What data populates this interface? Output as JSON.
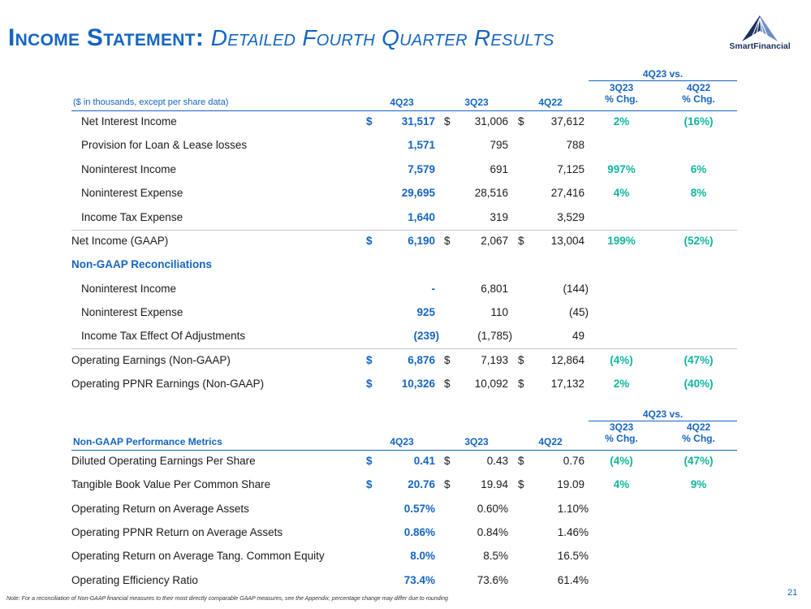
{
  "title": {
    "main": "Income Statement:",
    "sub": "Detailed Fourth Quarter Results"
  },
  "logo": {
    "text": "SmartFinancial"
  },
  "table1": {
    "group_header": "4Q23 vs.",
    "note": "($ in thousands, except per share data)",
    "cols": [
      "4Q23",
      "3Q23",
      "4Q22"
    ],
    "pct_cols": [
      "3Q23\n% Chg.",
      "4Q22\n% Chg."
    ],
    "rows": [
      {
        "label": "Net Interest Income",
        "d1": "$",
        "v1": "31,517",
        "d2": "$",
        "v2": "31,006",
        "d3": "$",
        "v3": "37,612",
        "p1": "2%",
        "p2": "(16%)"
      },
      {
        "label": "Provision for Loan & Lease losses",
        "d1": "",
        "v1": "1,571",
        "d2": "",
        "v2": "795",
        "d3": "",
        "v3": "788",
        "p1": "",
        "p2": ""
      },
      {
        "label": "Noninterest Income",
        "d1": "",
        "v1": "7,579",
        "d2": "",
        "v2": "691",
        "d3": "",
        "v3": "7,125",
        "p1": "997%",
        "p2": "6%"
      },
      {
        "label": "Noninterest Expense",
        "d1": "",
        "v1": "29,695",
        "d2": "",
        "v2": "28,516",
        "d3": "",
        "v3": "27,416",
        "p1": "4%",
        "p2": "8%"
      },
      {
        "label": "Income Tax Expense",
        "d1": "",
        "v1": "1,640",
        "d2": "",
        "v2": "319",
        "d3": "",
        "v3": "3,529",
        "p1": "",
        "p2": ""
      },
      {
        "label": "Net Income (GAAP)",
        "d1": "$",
        "v1": "6,190",
        "d2": "$",
        "v2": "2,067",
        "d3": "$",
        "v3": "13,004",
        "p1": "199%",
        "p2": "(52%)"
      },
      {
        "label": "Non-GAAP Reconciliations",
        "d1": "",
        "v1": "",
        "d2": "",
        "v2": "",
        "d3": "",
        "v3": "",
        "p1": "",
        "p2": ""
      },
      {
        "label": "Noninterest Income",
        "d1": "",
        "v1": "-",
        "d2": "",
        "v2": "6,801",
        "d3": "",
        "v3": "(144)",
        "p1": "",
        "p2": ""
      },
      {
        "label": "Noninterest Expense",
        "d1": "",
        "v1": "925",
        "d2": "",
        "v2": "110",
        "d3": "",
        "v3": "(45)",
        "p1": "",
        "p2": ""
      },
      {
        "label": "Income Tax Effect Of Adjustments",
        "d1": "",
        "v1": "(239)",
        "d2": "",
        "v2": "(1,785)",
        "d3": "",
        "v3": "49",
        "p1": "",
        "p2": ""
      },
      {
        "label": "Operating Earnings (Non-GAAP)",
        "d1": "$",
        "v1": "6,876",
        "d2": "$",
        "v2": "7,193",
        "d3": "$",
        "v3": "12,864",
        "p1": "(4%)",
        "p2": "(47%)"
      },
      {
        "label": "Operating PPNR Earnings (Non-GAAP)",
        "d1": "$",
        "v1": "10,326",
        "d2": "$",
        "v2": "10,092",
        "d3": "$",
        "v3": "17,132",
        "p1": "2%",
        "p2": "(40%)"
      }
    ]
  },
  "table2": {
    "group_header": "4Q23 vs.",
    "title": "Non-GAAP Performance Metrics",
    "cols": [
      "4Q23",
      "3Q23",
      "4Q22"
    ],
    "pct_cols": [
      "3Q23\n% Chg.",
      "4Q22\n% Chg."
    ],
    "rows": [
      {
        "label": "Diluted Operating Earnings Per Share",
        "d1": "$",
        "v1": "0.41",
        "d2": "$",
        "v2": "0.43",
        "d3": "$",
        "v3": "0.76",
        "p1": "(4%)",
        "p2": "(47%)"
      },
      {
        "label": "Tangible Book Value Per Common Share",
        "d1": "$",
        "v1": "20.76",
        "d2": "$",
        "v2": "19.94",
        "d3": "$",
        "v3": "19.09",
        "p1": "4%",
        "p2": "9%"
      },
      {
        "label": "Operating Return on Average Assets",
        "d1": "",
        "v1": "0.57%",
        "d2": "",
        "v2": "0.60%",
        "d3": "",
        "v3": "1.10%",
        "p1": "",
        "p2": ""
      },
      {
        "label": "Operating PPNR Return on Average Assets",
        "d1": "",
        "v1": "0.86%",
        "d2": "",
        "v2": "0.84%",
        "d3": "",
        "v3": "1.46%",
        "p1": "",
        "p2": ""
      },
      {
        "label": "Operating Return on Average Tang. Common Equity",
        "d1": "",
        "v1": "8.0%",
        "d2": "",
        "v2": "8.5%",
        "d3": "",
        "v3": "16.5%",
        "p1": "",
        "p2": ""
      },
      {
        "label": "Operating Efficiency Ratio",
        "d1": "",
        "v1": "73.4%",
        "d2": "",
        "v2": "73.6%",
        "d3": "",
        "v3": "61.4%",
        "p1": "",
        "p2": ""
      }
    ]
  },
  "footnote": "Note: For a reconciliation of Non-GAAP financial measures to their most directly comparable GAAP measures, see the Appendix; percentage change may differ due to rounding",
  "page_number": "21"
}
